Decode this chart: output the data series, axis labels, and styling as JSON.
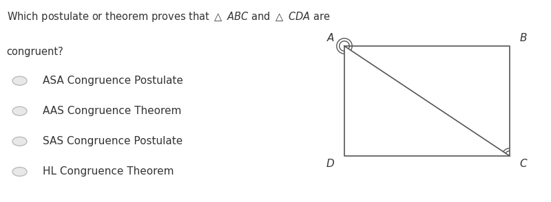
{
  "title_line1": "Which postulate or theorem proves that △ ",
  "title_bold1": "ABC",
  "title_line1b": " and △ ",
  "title_bold2": "CDA",
  "title_line1c": " are",
  "title_line2": "congruent?",
  "options": [
    "ASA Congruence Postulate",
    "AAS Congruence Theorem",
    "SAS Congruence Postulate",
    "HL Congruence Theorem"
  ],
  "radio_color": "#bbbbbb",
  "radio_fill": "#e8e8e8",
  "text_color": "#333333",
  "line_color": "#555555",
  "bg_color": "#ffffff",
  "title_fontsize": 10.5,
  "option_fontsize": 11,
  "label_fontsize": 11
}
